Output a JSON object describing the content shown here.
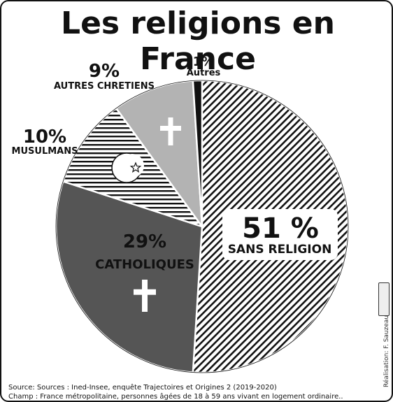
{
  "title": "Les religions en France",
  "chart_data": {
    "type": "pie",
    "title": "Les religions en France",
    "slices": [
      {
        "name": "SANS RELIGION",
        "value": 51,
        "label": "51 %",
        "fill": "hatch-diag"
      },
      {
        "name": "CATHOLIQUES",
        "value": 29,
        "label": "29%",
        "fill": "#555555"
      },
      {
        "name": "MUSULMANS",
        "value": 10,
        "label": "10%",
        "fill": "hatch-horiz"
      },
      {
        "name": "AUTRES CHRETIENS",
        "value": 9,
        "label": "9%",
        "fill": "#b3b3b3"
      },
      {
        "name": "Autres",
        "value": 1,
        "label": "1%",
        "fill": "#111111"
      }
    ],
    "icons": [
      "cross-icon",
      "crescent-star-icon"
    ]
  },
  "footer": {
    "source": "Source: Sources : Ined-Insee, enquête Trajectoires et Origines 2 (2019-2020)",
    "scope": "Champ : France métropolitaine, personnes âgées de 18 à 59 ans vivant en logement ordinaire.."
  },
  "credit": "Réalisation: F. Sauzeau"
}
